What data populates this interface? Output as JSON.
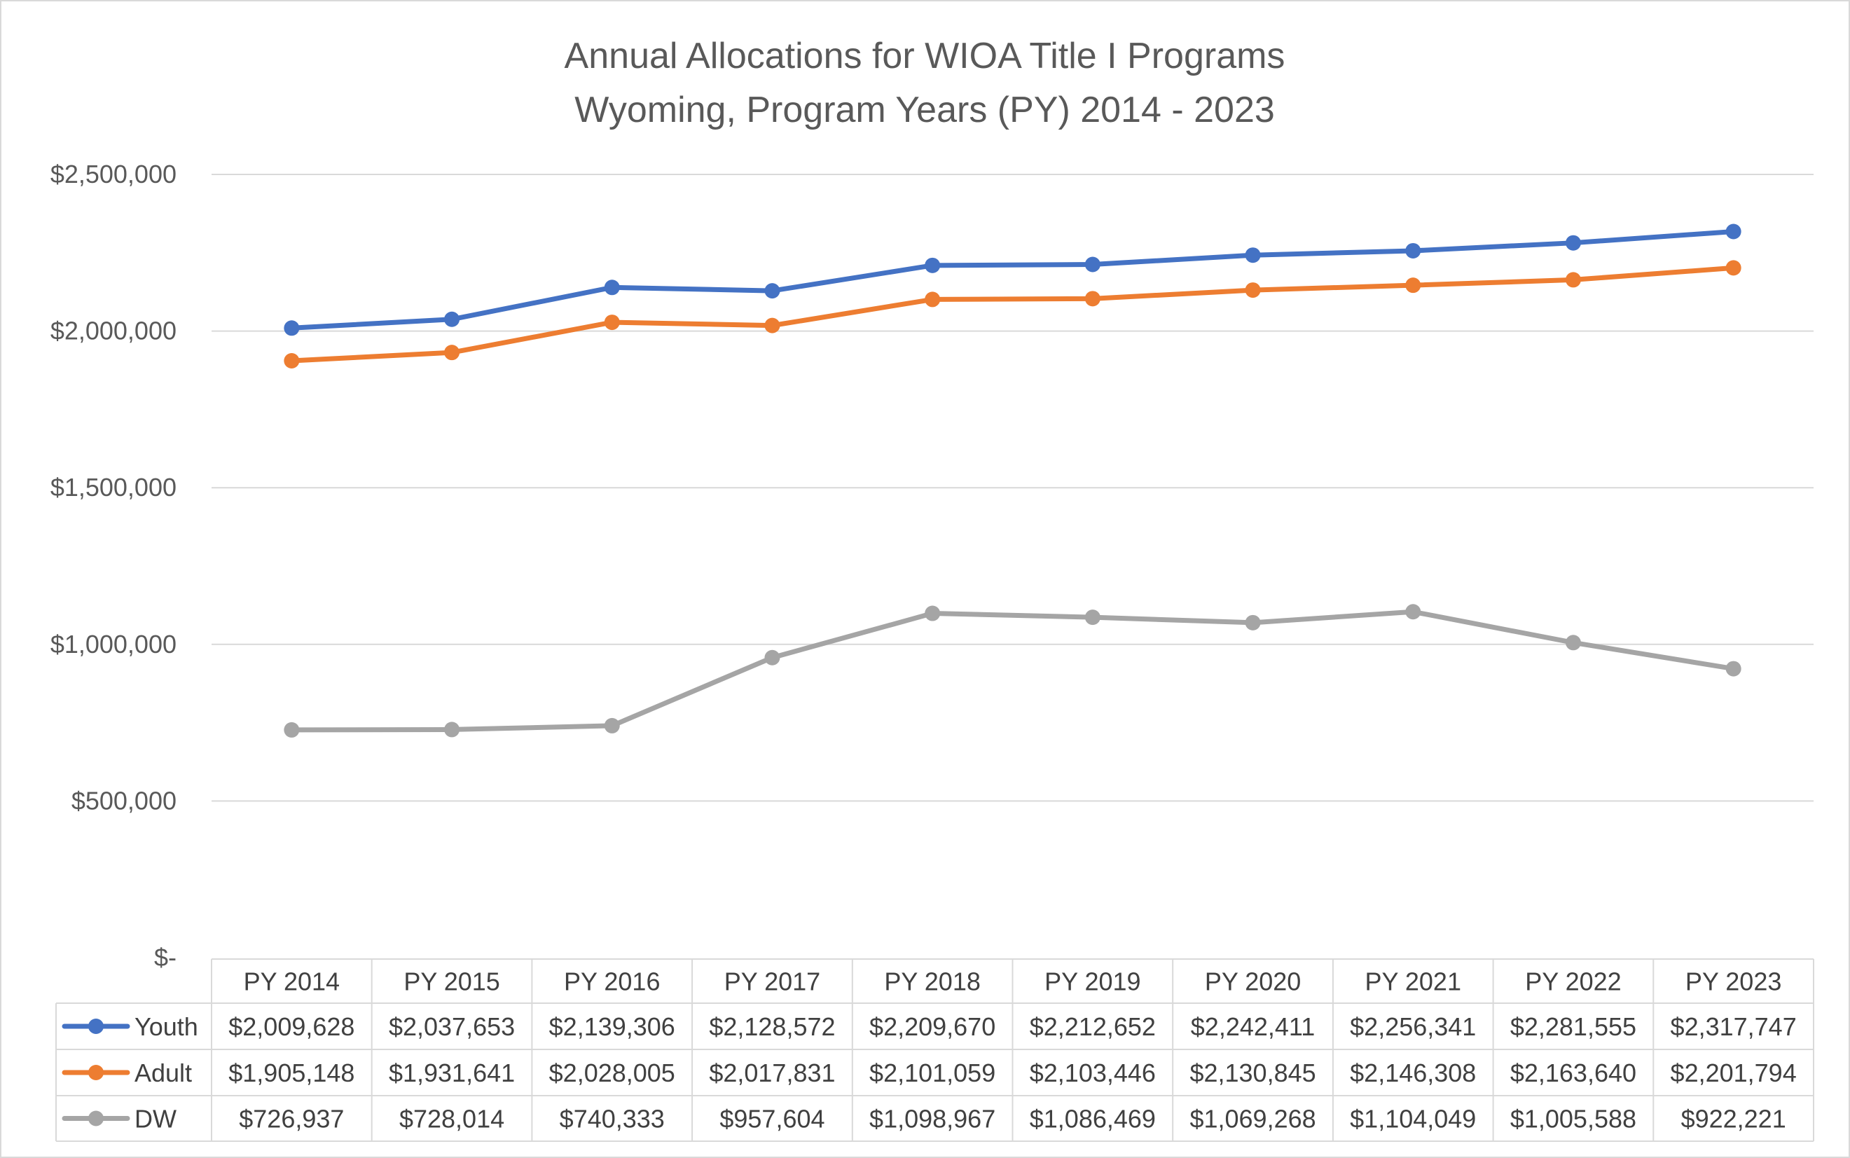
{
  "chart_data": {
    "type": "line",
    "title": "Annual Allocations for WIOA Title I Programs",
    "subtitle": "Wyoming, Program Years (PY) 2014 - 2023",
    "categories": [
      "PY 2014",
      "PY 2015",
      "PY 2016",
      "PY 2017",
      "PY 2018",
      "PY 2019",
      "PY 2020",
      "PY 2021",
      "PY 2022",
      "PY 2023"
    ],
    "ylim": [
      0,
      2500000
    ],
    "yticks": [
      0,
      500000,
      1000000,
      1500000,
      2000000,
      2500000
    ],
    "ytick_labels": [
      "$-",
      "$500,000",
      "$1,000,000",
      "$1,500,000",
      "$2,000,000",
      "$2,500,000"
    ],
    "grid": true,
    "legend": "data-table",
    "series": [
      {
        "name": "Youth",
        "color": "#4472C4",
        "values": [
          2009628,
          2037653,
          2139306,
          2128572,
          2209670,
          2212652,
          2242411,
          2256341,
          2281555,
          2317747
        ],
        "labels": [
          "$2,009,628",
          "$2,037,653",
          "$2,139,306",
          "$2,128,572",
          "$2,209,670",
          "$2,212,652",
          "$2,242,411",
          "$2,256,341",
          "$2,281,555",
          "$2,317,747"
        ]
      },
      {
        "name": "Adult",
        "color": "#ED7D31",
        "values": [
          1905148,
          1931641,
          2028005,
          2017831,
          2101059,
          2103446,
          2130845,
          2146308,
          2163640,
          2201794
        ],
        "labels": [
          "$1,905,148",
          "$1,931,641",
          "$2,028,005",
          "$2,017,831",
          "$2,101,059",
          "$2,103,446",
          "$2,130,845",
          "$2,146,308",
          "$2,163,640",
          "$2,201,794"
        ]
      },
      {
        "name": "DW",
        "color": "#A5A5A5",
        "values": [
          726937,
          728014,
          740333,
          957604,
          1098967,
          1086469,
          1069268,
          1104049,
          1005588,
          922221
        ],
        "labels": [
          "$726,937",
          "$728,014",
          "$740,333",
          "$957,604",
          "$1,098,967",
          "$1,086,469",
          "$1,069,268",
          "$1,104,049",
          "$1,005,588",
          "$922,221"
        ]
      }
    ]
  }
}
